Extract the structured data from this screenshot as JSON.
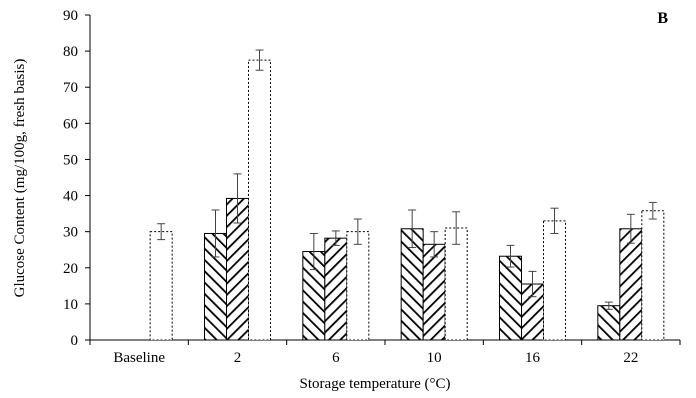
{
  "chart_data": {
    "type": "bar",
    "panel_label": "B",
    "xlabel": "Storage temperature (°C)",
    "ylabel": "Glucose Content (mg/100g, fresh basis)",
    "ylim": [
      0,
      90
    ],
    "yticks": [
      0,
      10,
      20,
      30,
      40,
      50,
      60,
      70,
      80,
      90
    ],
    "categories": [
      "Baseline",
      "2",
      "6",
      "10",
      "16",
      "22"
    ],
    "grid": false,
    "legend": "none",
    "series": [
      {
        "pattern": "backslash-hatch",
        "values": [
          null,
          29.5,
          24.5,
          30.8,
          23.2,
          9.5
        ],
        "errors": [
          null,
          6.5,
          5.0,
          5.2,
          3.0,
          1.0
        ]
      },
      {
        "pattern": "slash-hatch",
        "values": [
          null,
          39.2,
          28.2,
          26.5,
          15.5,
          30.8
        ],
        "errors": [
          null,
          6.8,
          2.0,
          3.5,
          3.5,
          4.0
        ]
      },
      {
        "pattern": "open-dotted",
        "values": [
          30.0,
          77.5,
          30.0,
          31.0,
          33.0,
          35.8
        ],
        "errors": [
          2.2,
          2.8,
          3.5,
          4.5,
          3.5,
          2.3
        ]
      }
    ]
  }
}
